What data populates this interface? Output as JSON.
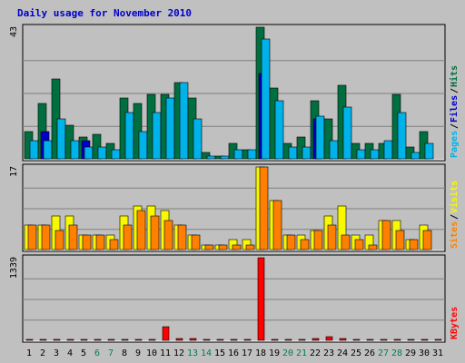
{
  "chart_data": {
    "type": "bar",
    "title": "Daily usage for November 2010",
    "categories": [
      "1",
      "2",
      "3",
      "4",
      "5",
      "6",
      "7",
      "8",
      "9",
      "10",
      "11",
      "12",
      "13",
      "14",
      "15",
      "16",
      "17",
      "18",
      "19",
      "20",
      "21",
      "22",
      "23",
      "24",
      "25",
      "26",
      "27",
      "28",
      "29",
      "30",
      "31"
    ],
    "weekend_days": [
      "6",
      "7",
      "13",
      "14",
      "20",
      "21",
      "27",
      "28"
    ],
    "grid": true,
    "panels": [
      {
        "id": "hits",
        "ymax_label": "43",
        "ymax": 43,
        "series": [
          {
            "name": "Hits",
            "color": "#006f3f",
            "values": [
              9,
              18,
              26,
              11,
              7,
              8,
              5,
              20,
              18,
              21,
              21,
              25,
              20,
              2,
              1,
              5,
              3,
              43,
              23,
              5,
              7,
              19,
              13,
              24,
              5,
              5,
              5,
              21,
              4,
              9,
              0
            ]
          },
          {
            "name": "Files",
            "color": "#0000c8",
            "values": [
              0,
              9,
              0,
              0,
              6,
              0,
              0,
              0,
              0,
              0,
              0,
              0,
              0,
              0,
              0,
              0,
              0,
              28,
              0,
              0,
              0,
              13,
              0,
              0,
              0,
              0,
              0,
              0,
              0,
              0,
              0
            ]
          },
          {
            "name": "Pages",
            "color": "#00b2ea",
            "values": [
              6,
              6,
              13,
              6,
              4,
              4,
              3,
              15,
              9,
              15,
              20,
              25,
              13,
              1,
              1,
              3,
              3,
              39,
              19,
              4,
              4,
              14,
              6,
              17,
              3,
              3,
              6,
              15,
              2,
              5,
              0
            ]
          }
        ],
        "legend": [
          "Pages",
          "Files",
          "Hits"
        ]
      },
      {
        "id": "visits",
        "ymax_label": "17",
        "ymax": 17,
        "series": [
          {
            "name": "Visits",
            "color": "#f8f800",
            "values": [
              5,
              5,
              7,
              7,
              3,
              3,
              3,
              7,
              9,
              9,
              8,
              5,
              3,
              1,
              1,
              2,
              2,
              17,
              10,
              3,
              3,
              4,
              7,
              9,
              3,
              3,
              6,
              6,
              2,
              5,
              0
            ]
          },
          {
            "name": "Sites",
            "color": "#ff8000",
            "values": [
              5,
              5,
              4,
              5,
              3,
              3,
              2,
              5,
              8,
              7,
              6,
              5,
              3,
              1,
              1,
              1,
              1,
              17,
              10,
              3,
              2,
              4,
              5,
              3,
              2,
              1,
              6,
              4,
              2,
              4,
              0
            ]
          }
        ],
        "legend": [
          "Sites",
          "Visits"
        ]
      },
      {
        "id": "kbytes",
        "ymax_label": "1339",
        "ymax": 1339,
        "series": [
          {
            "name": "KBytes",
            "color": "#ff0000",
            "values": [
              10,
              10,
              10,
              10,
              20,
              10,
              10,
              10,
              10,
              10,
              220,
              30,
              25,
              10,
              10,
              10,
              10,
              1339,
              10,
              10,
              10,
              25,
              65,
              25,
              10,
              10,
              10,
              10,
              10,
              10,
              10
            ]
          }
        ],
        "legend": [
          "KBytes"
        ]
      }
    ]
  }
}
